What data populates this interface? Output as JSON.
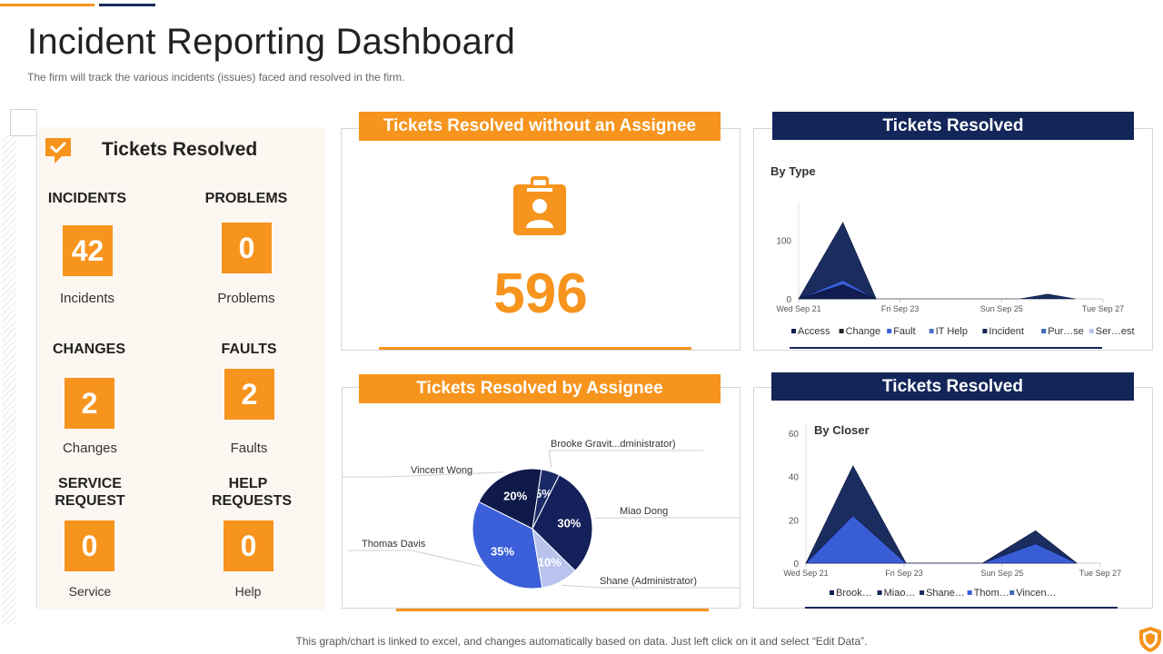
{
  "page": {
    "title": "Incident Reporting Dashboard",
    "subtitle": "The firm will track the various incidents (issues) faced and resolved in the firm.",
    "footer": "This graph/chart is linked to excel,  and changes automatically based on data. Just left click on it and select “Edit Data”."
  },
  "summary": {
    "title": "Tickets Resolved",
    "icon": "comment-check-icon",
    "items": [
      {
        "head": "INCIDENTS",
        "value": "42",
        "label": "Incidents"
      },
      {
        "head": "PROBLEMS",
        "value": "0",
        "label": "Problems"
      },
      {
        "head": "CHANGES",
        "value": "2",
        "label": "Changes"
      },
      {
        "head": "FAULTS",
        "value": "2",
        "label": "Faults"
      },
      {
        "head": "SERVICE REQUEST",
        "value": "0",
        "label": "Service"
      },
      {
        "head": "HELP REQUESTS",
        "value": "0",
        "label": "Help"
      }
    ]
  },
  "unassigned": {
    "title": "Tickets Resolved without an Assignee",
    "icon": "clipboard-user-icon",
    "value": "596"
  },
  "colors": {
    "orange": "#f7941d",
    "navy": "#132659",
    "blue": "#3a5fd9",
    "light_blue": "#b8c4ee",
    "dark_navy": "#0f1f55"
  },
  "chart_data": [
    {
      "type": "pie",
      "title": "Tickets Resolved by Assignee",
      "slices": [
        {
          "name": "Brooke Gravit...dministrator)",
          "value": 5,
          "label": "5%",
          "color": "#1b2a66"
        },
        {
          "name": "Miao Dong",
          "value": 30,
          "label": "30%",
          "color": "#14215a"
        },
        {
          "name": "Shane (Administrator)",
          "value": 10,
          "label": "10%",
          "color": "#b8c4ee"
        },
        {
          "name": "Thomas Davis",
          "value": 35,
          "label": "35%",
          "color": "#3a5fd9"
        },
        {
          "name": "Vincent Wong",
          "value": 20,
          "label": "20%",
          "color": "#0f1a4a"
        }
      ]
    },
    {
      "type": "area",
      "title": "Tickets Resolved",
      "subtitle": "By Type",
      "x_ticks": [
        "Wed Sep 21",
        "Fri Sep 23",
        "Sun Sep 25",
        "Tue Sep 27"
      ],
      "y_ticks": [
        "0",
        "100"
      ],
      "ylim": [
        0,
        150
      ],
      "legend": [
        {
          "name": "Access",
          "color": "#0f1f55"
        },
        {
          "name": "Change",
          "color": "#222222"
        },
        {
          "name": "Fault",
          "color": "#3a5fd9"
        },
        {
          "name": "IT Help",
          "color": "#4a70c9"
        },
        {
          "name": "Incident",
          "color": "#132659"
        },
        {
          "name": "Pur…se",
          "color": "#3d6bb3"
        },
        {
          "name": "Ser…est",
          "color": "#b8c4ee"
        }
      ],
      "series": [
        {
          "name": "Incident",
          "x": [
            0,
            0.8,
            1.4,
            4,
            4.5,
            5
          ],
          "values": [
            0,
            130,
            0,
            0,
            8,
            0
          ],
          "color": "#132659"
        },
        {
          "name": "Fault",
          "x": [
            0,
            0.8,
            1.4
          ],
          "values": [
            0,
            32,
            0
          ],
          "color": "#3a5fd9"
        },
        {
          "name": "Change",
          "x": [
            0,
            0.8,
            1.4
          ],
          "values": [
            0,
            24,
            0
          ],
          "color": "#0f1a4a"
        }
      ],
      "xlim": [
        0,
        5.5
      ]
    },
    {
      "type": "area",
      "title": "Tickets Resolved",
      "subtitle": "By Closer",
      "x_ticks": [
        "Wed Sep 21",
        "Fri Sep 23",
        "Sun Sep 25",
        "Tue Sep 27"
      ],
      "y_ticks": [
        "0",
        "20",
        "40",
        "60"
      ],
      "ylim": [
        0,
        60
      ],
      "legend": [
        {
          "name": "Brook…",
          "color": "#0f1f55"
        },
        {
          "name": "Miao…",
          "color": "#132659"
        },
        {
          "name": "Shane…",
          "color": "#1b2a59"
        },
        {
          "name": "Thom…",
          "color": "#3a5fd9"
        },
        {
          "name": "Vincen…",
          "color": "#3d6bb3"
        }
      ],
      "series": [
        {
          "name": "Vincent",
          "x": [
            0,
            0.8,
            1.7,
            3.0,
            3.9,
            4.6
          ],
          "values": [
            0,
            45,
            0,
            0,
            15,
            0
          ],
          "color": "#132659"
        },
        {
          "name": "Thomas",
          "x": [
            0,
            0.8,
            1.7,
            3.0,
            3.9,
            4.6
          ],
          "values": [
            0,
            22,
            0,
            0,
            9,
            0
          ],
          "color": "#3a5fd9"
        }
      ],
      "xlim": [
        0,
        5
      ]
    }
  ]
}
